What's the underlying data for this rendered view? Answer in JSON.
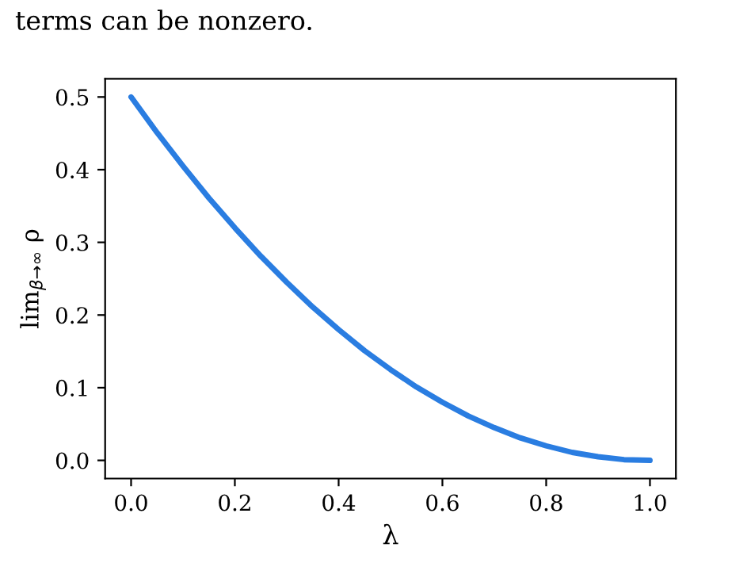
{
  "chart_data": {
    "type": "line",
    "xlabel": "λ",
    "ylabel": "lim$_{β→∞}$ ρ",
    "annotations": [
      "terms can be nonzero."
    ],
    "x": [
      0,
      0.05,
      0.1,
      0.15,
      0.2,
      0.25,
      0.3,
      0.35,
      0.4,
      0.45,
      0.5,
      0.55,
      0.6,
      0.65,
      0.7,
      0.75,
      0.8,
      0.85,
      0.9,
      0.95,
      1.0
    ],
    "series": [
      {
        "color": "#2a7de1",
        "values": [
          0.5,
          0.451,
          0.405,
          0.361,
          0.32,
          0.281,
          0.245,
          0.211,
          0.18,
          0.151,
          0.125,
          0.101,
          0.08,
          0.061,
          0.045,
          0.031,
          0.02,
          0.011,
          0.005,
          0.001,
          0.0
        ]
      }
    ],
    "xlim": [
      -0.05,
      1.05
    ],
    "ylim": [
      -0.025,
      0.525
    ],
    "xticks": [
      {
        "value": 0,
        "label": "0.0"
      },
      0.2,
      0.4,
      0.6,
      0.8,
      {
        "value": 1,
        "label": "1.0"
      }
    ],
    "yticks": [
      {
        "value": 0,
        "label": "0.0"
      },
      0.1,
      0.2,
      0.3,
      0.4,
      0.5
    ],
    "grid": false,
    "legend": false
  }
}
